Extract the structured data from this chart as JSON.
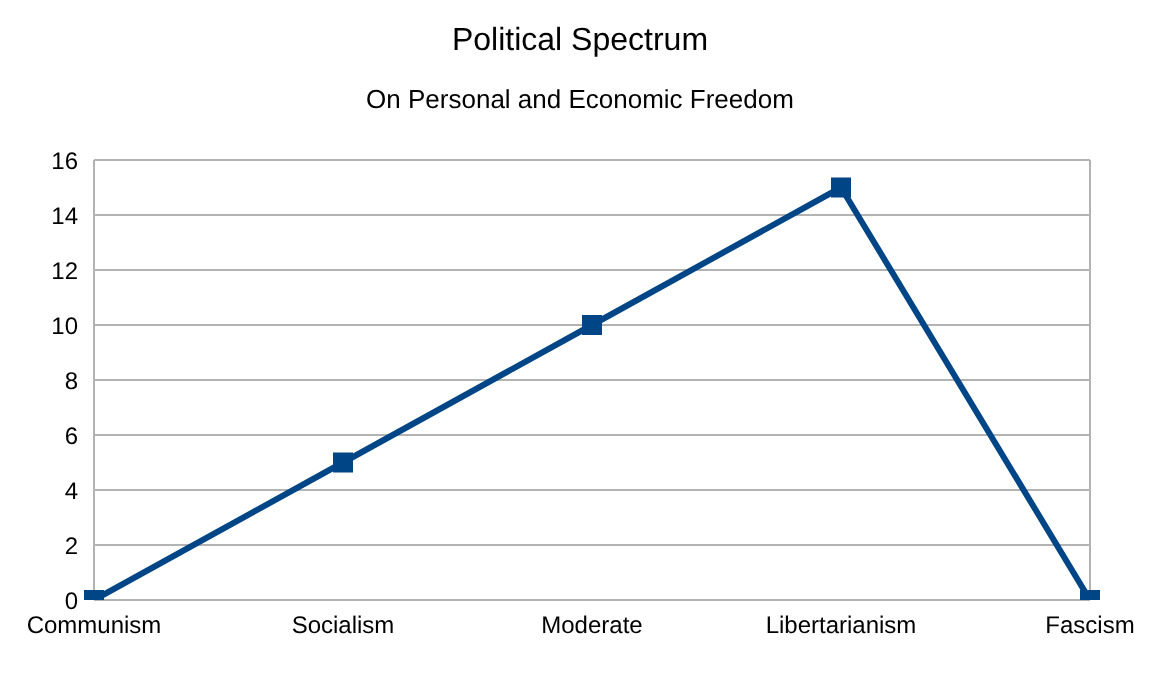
{
  "chart_data": {
    "type": "line",
    "title": "Political Spectrum",
    "subtitle": "On Personal and Economic Freedom",
    "categories": [
      "Communism",
      "Socialism",
      "Moderate",
      "Libertarianism",
      "Fascism"
    ],
    "series": [
      {
        "color": "#004586",
        "values": [
          0,
          5,
          10,
          15,
          0
        ]
      }
    ],
    "ylim": [
      0,
      16
    ],
    "yticks": [
      0,
      2,
      4,
      6,
      8,
      10,
      12,
      14,
      16
    ],
    "grid": "y",
    "legend": false,
    "marker": "square",
    "line_style": "solid"
  }
}
